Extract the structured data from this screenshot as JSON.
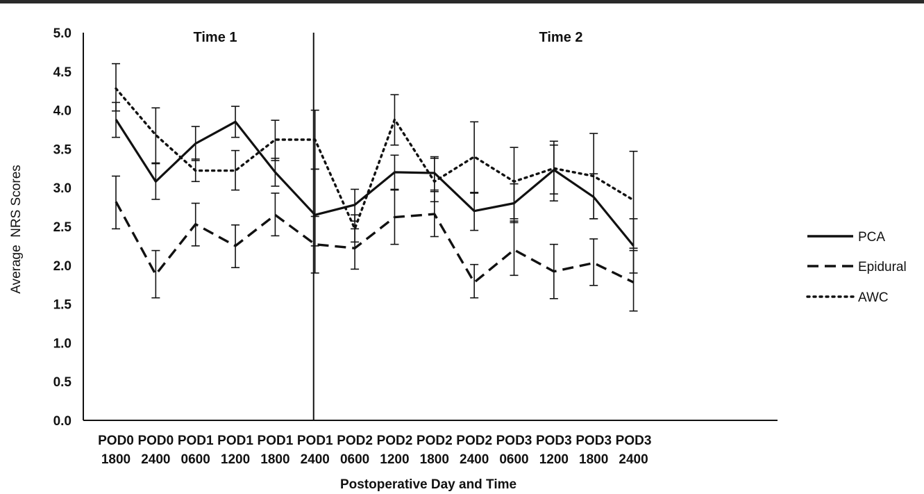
{
  "chart_data": {
    "type": "line",
    "xlabel": "Postoperative Day and Time",
    "ylabel": "Average  NRS Scores",
    "ylim": [
      0,
      5
    ],
    "yticks": [
      "0.0",
      "0.5",
      "1.0",
      "1.5",
      "2.0",
      "2.5",
      "3.0",
      "3.5",
      "4.0",
      "4.5",
      "5.0"
    ],
    "categories": [
      [
        "POD0",
        "1800"
      ],
      [
        "POD0",
        "2400"
      ],
      [
        "POD1",
        "0600"
      ],
      [
        "POD1",
        "1200"
      ],
      [
        "POD1",
        "1800"
      ],
      [
        "POD1",
        "2400"
      ],
      [
        "POD2",
        "0600"
      ],
      [
        "POD2",
        "1200"
      ],
      [
        "POD2",
        "1800"
      ],
      [
        "POD2",
        "2400"
      ],
      [
        "POD3",
        "0600"
      ],
      [
        "POD3",
        "1200"
      ],
      [
        "POD3",
        "1800"
      ],
      [
        "POD3",
        "2400"
      ]
    ],
    "annotations": [
      "Time 1",
      "Time 2"
    ],
    "divider_after_category": 5,
    "series": [
      {
        "name": "PCA",
        "style": "solid",
        "values": [
          3.88,
          3.08,
          3.57,
          3.85,
          3.2,
          2.65,
          2.78,
          3.2,
          3.19,
          2.7,
          2.8,
          3.23,
          2.88,
          2.25
        ],
        "err_low": [
          3.65,
          2.85,
          3.35,
          3.65,
          3.02,
          2.25,
          2.57,
          2.98,
          2.97,
          2.45,
          2.55,
          2.83,
          2.6,
          1.9
        ],
        "err_high": [
          4.1,
          3.31,
          3.79,
          4.05,
          3.38,
          3.24,
          2.98,
          3.42,
          3.4,
          2.94,
          3.05,
          3.6,
          3.18,
          2.6
        ]
      },
      {
        "name": "Epidural",
        "style": "dashed",
        "values": [
          2.82,
          1.88,
          2.53,
          2.25,
          2.65,
          2.27,
          2.22,
          2.62,
          2.66,
          1.78,
          2.2,
          1.92,
          2.03,
          1.78
        ],
        "err_low": [
          2.47,
          1.58,
          2.25,
          1.97,
          2.38,
          1.9,
          1.95,
          2.27,
          2.37,
          1.58,
          1.87,
          1.57,
          1.74,
          1.41
        ],
        "err_high": [
          3.15,
          2.19,
          2.8,
          2.52,
          2.93,
          2.63,
          2.47,
          2.97,
          2.95,
          2.01,
          2.57,
          2.27,
          2.34,
          2.19
        ]
      },
      {
        "name": "AWC",
        "style": "dotted",
        "values": [
          4.28,
          3.68,
          3.22,
          3.22,
          3.62,
          3.62,
          2.47,
          3.88,
          3.08,
          3.4,
          3.08,
          3.25,
          3.15,
          2.84
        ],
        "err_low": [
          3.99,
          3.32,
          3.08,
          2.97,
          3.35,
          3.24,
          2.3,
          3.55,
          2.82,
          2.93,
          2.6,
          2.92,
          2.6,
          2.22
        ],
        "err_high": [
          4.6,
          4.03,
          3.37,
          3.48,
          3.87,
          4.0,
          2.65,
          4.2,
          3.38,
          3.85,
          3.52,
          3.55,
          3.7,
          3.47
        ]
      }
    ],
    "legend_position": "right",
    "grid": false
  }
}
